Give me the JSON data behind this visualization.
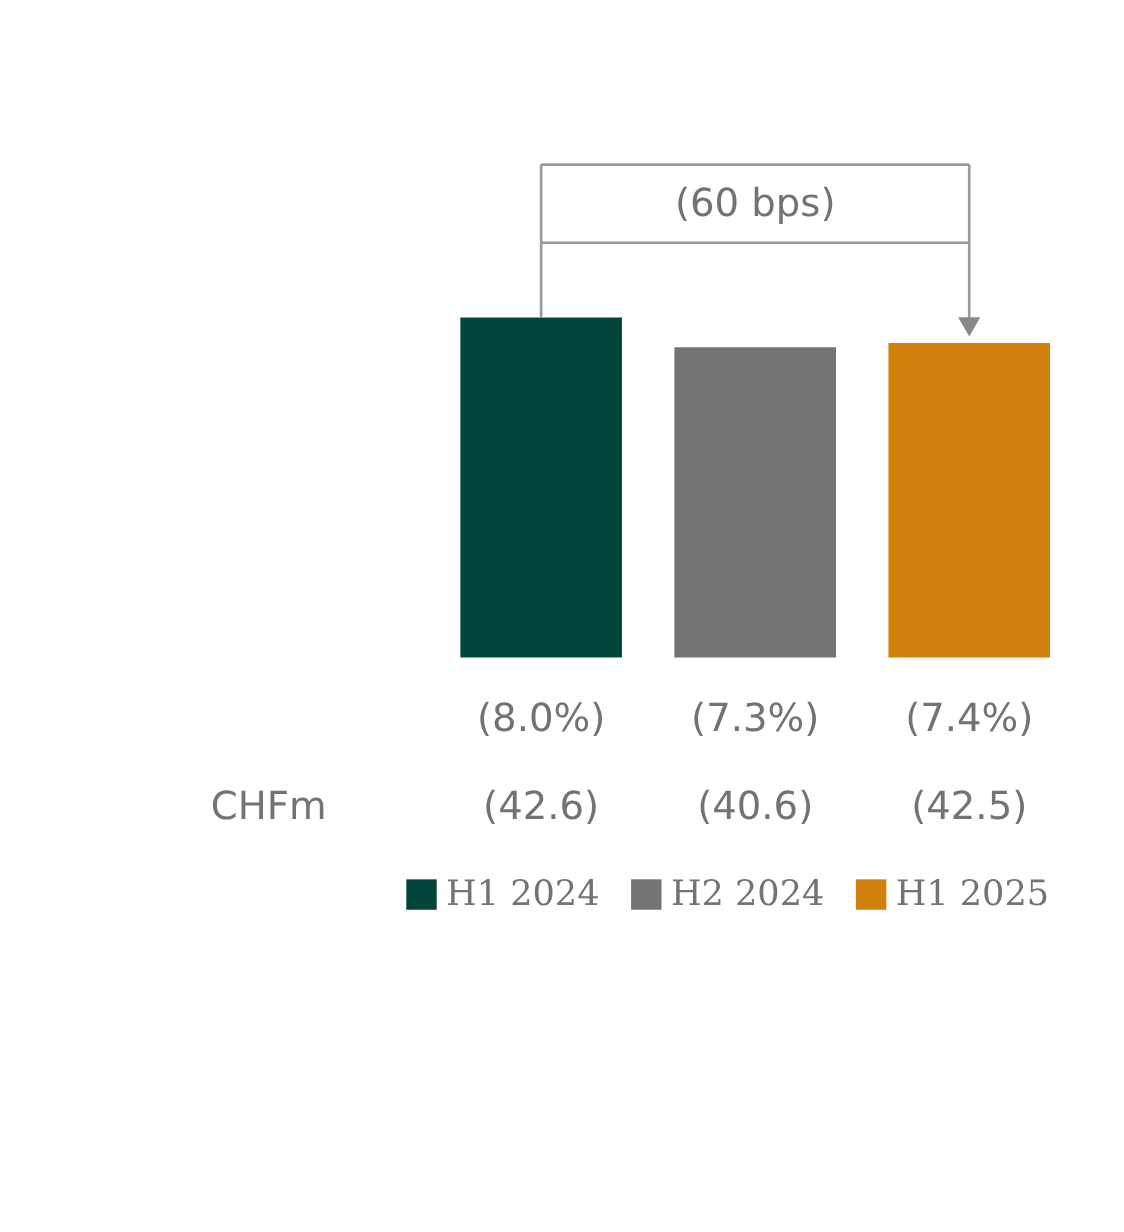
{
  "chart_data": {
    "type": "bar",
    "stacked": true,
    "categories": [
      null,
      null,
      null
    ],
    "series": [
      {
        "name": "H1 2024",
        "color": "#02453b",
        "values": [
          8.0,
          null,
          null
        ],
        "value_labels": [
          "(8.0%)",
          null,
          null
        ]
      },
      {
        "name": "H2 2024",
        "color": "#737373",
        "values": [
          null,
          7.3,
          null
        ],
        "value_labels": [
          null,
          "(7.3%)",
          null
        ]
      },
      {
        "name": "H1 2025",
        "color": "#d2800c",
        "values": [
          null,
          null,
          7.4
        ],
        "value_labels": [
          null,
          null,
          "(7.4%)"
        ]
      }
    ],
    "annotations": [
      "(60 bps)",
      "CHFm",
      "(42.6)",
      "(40.6)",
      "(42.5)"
    ],
    "legend": "bottom"
  }
}
